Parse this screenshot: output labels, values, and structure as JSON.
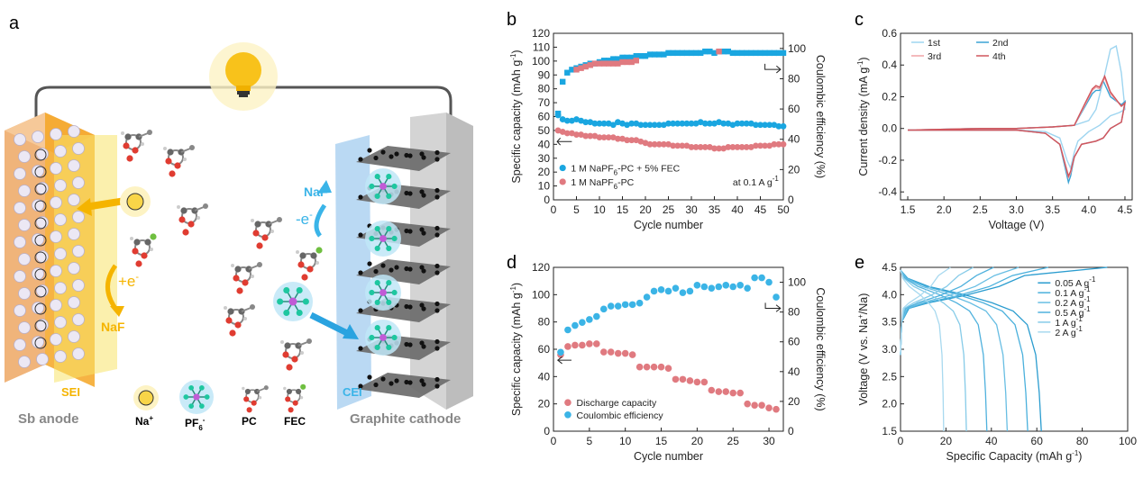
{
  "panels": {
    "a": {
      "letter": "a",
      "labels": {
        "sb_anode": "Sb anode",
        "graphite_cathode": "Graphite cathode",
        "sei": "SEI",
        "cei": "CEI",
        "naf_left": "NaF",
        "naf_right": "NaF",
        "plus_e": "+e",
        "minus_e": "-e",
        "electron_sup": "-",
        "legend_na": "Na",
        "legend_na_sup": "+",
        "legend_pf6": "PF",
        "legend_pf6_sub": "6",
        "legend_pf6_sup": "-",
        "legend_pc": "PC",
        "legend_fec": "FEC"
      },
      "colors": {
        "anode": "#f5a623",
        "sei": "#f7e36a",
        "cei": "#9cc9ee",
        "arrow_yellow": "#f5b400",
        "arrow_blue": "#3ab4e8"
      }
    },
    "b": {
      "letter": "b",
      "chart_data": {
        "type": "scatter",
        "xlabel": "Cycle number",
        "ylabel": "Specific capacity (mAh g",
        "ylabel_sup": "-1",
        "ylabel_end": ")",
        "y2label": "Coulombic efficiency (%)",
        "xlim": [
          0,
          50
        ],
        "ylim": [
          0,
          120
        ],
        "y2lim": [
          0,
          110
        ],
        "xticks": [
          0,
          5,
          10,
          15,
          20,
          25,
          30,
          35,
          40,
          45,
          50
        ],
        "yticks": [
          0,
          10,
          20,
          30,
          40,
          50,
          60,
          70,
          80,
          90,
          100,
          110,
          120
        ],
        "y2ticks": [
          0,
          20,
          40,
          60,
          80,
          100
        ],
        "annotation": "at 0.1 A g",
        "annotation_sup": "-1",
        "series": [
          {
            "name": "1 M NaPF6-PC + 5% FEC",
            "name_main": "1 M NaPF",
            "name_sub": "6",
            "name_end": "-PC + 5% FEC",
            "color": "#1aa6e0",
            "kind": "capacity",
            "x": [
              1,
              2,
              3,
              4,
              5,
              6,
              7,
              8,
              9,
              10,
              11,
              12,
              13,
              14,
              15,
              16,
              17,
              18,
              19,
              20,
              21,
              22,
              23,
              24,
              25,
              26,
              27,
              28,
              29,
              30,
              31,
              32,
              33,
              34,
              35,
              36,
              37,
              38,
              39,
              40,
              41,
              42,
              43,
              44,
              45,
              46,
              47,
              48,
              49,
              50
            ],
            "y": [
              61,
              58,
              57,
              57,
              58,
              57,
              56,
              56,
              55,
              55,
              55,
              55,
              54,
              56,
              55,
              54,
              55,
              55,
              54,
              54,
              54,
              54,
              54,
              54,
              55,
              55,
              55,
              55,
              55,
              55,
              55,
              56,
              55,
              55,
              55,
              56,
              55,
              55,
              54,
              55,
              55,
              55,
              55,
              54,
              54,
              54,
              54,
              54,
              53,
              53
            ]
          },
          {
            "name": "1 M NaPF6-PC + 5% FEC CE",
            "color": "#1aa6e0",
            "kind": "ce",
            "x": [
              1,
              2,
              3,
              4,
              5,
              6,
              7,
              8,
              9,
              10,
              11,
              12,
              13,
              14,
              15,
              16,
              17,
              18,
              19,
              20,
              21,
              22,
              23,
              24,
              25,
              26,
              27,
              28,
              29,
              30,
              31,
              32,
              33,
              34,
              35,
              36,
              37,
              38,
              39,
              40,
              41,
              42,
              43,
              44,
              45,
              46,
              47,
              48,
              49,
              50
            ],
            "y": [
              57,
              78,
              84,
              86,
              87,
              88,
              89,
              90,
              90,
              91,
              92,
              92,
              93,
              93,
              94,
              94,
              94,
              95,
              95,
              95,
              96,
              96,
              96,
              96,
              97,
              97,
              97,
              97,
              97,
              97,
              97,
              97,
              98,
              98,
              97,
              98,
              98,
              98,
              97,
              97,
              97,
              97,
              97,
              97,
              97,
              97,
              97,
              97,
              97,
              97
            ]
          },
          {
            "name": "1 M NaPF6-PC",
            "name_main": "1 M NaPF",
            "name_sub": "6",
            "name_end": "-PC",
            "color": "#e07a80",
            "kind": "capacity",
            "x": [
              1,
              2,
              3,
              4,
              5,
              6,
              7,
              8,
              9,
              10,
              11,
              12,
              13,
              14,
              15,
              16,
              17,
              18,
              19,
              20,
              21,
              22,
              23,
              24,
              25,
              26,
              27,
              28,
              29,
              30,
              31,
              32,
              33,
              34,
              35,
              36,
              37,
              38,
              39,
              40,
              41,
              42,
              43,
              44,
              45,
              46,
              47,
              48,
              49,
              50
            ],
            "y": [
              50,
              49,
              48,
              48,
              47,
              47,
              46,
              46,
              46,
              45,
              45,
              45,
              45,
              44,
              44,
              43,
              43,
              43,
              42,
              41,
              40,
              40,
              40,
              40,
              40,
              39,
              39,
              39,
              39,
              38,
              38,
              38,
              38,
              38,
              37,
              37,
              37,
              38,
              38,
              38,
              38,
              38,
              38,
              39,
              39,
              39,
              39,
              40,
              40,
              40
            ]
          },
          {
            "name": "1 M NaPF6-PC CE",
            "color": "#e07a80",
            "kind": "ce",
            "x": [
              5,
              6,
              7,
              8,
              9,
              10,
              11,
              12,
              13,
              14,
              15,
              16,
              17,
              18,
              36
            ],
            "y": [
              86,
              87,
              88,
              89,
              90,
              90,
              90,
              90,
              90,
              90,
              91,
              91,
              91,
              92,
              98
            ]
          }
        ]
      }
    },
    "c": {
      "letter": "c",
      "chart_data": {
        "type": "line",
        "xlabel": "Voltage (V)",
        "ylabel": "Current density (mA g",
        "ylabel_sup": "-1",
        "ylabel_end": ")",
        "xlim": [
          1.4,
          4.6
        ],
        "ylim": [
          -0.45,
          0.6
        ],
        "xticks": [
          1.5,
          2.0,
          2.5,
          3.0,
          3.5,
          4.0,
          4.5
        ],
        "xtick_labels": [
          "1.5",
          "2.0",
          "2.5",
          "3.0",
          "3.5",
          "4.0",
          "4.5"
        ],
        "yticks": [
          -0.4,
          -0.2,
          0.0,
          0.2,
          0.4,
          0.6
        ],
        "ytick_labels": [
          "-0.4",
          "-0.2",
          "0.0",
          "0.2",
          "0.4",
          "0.6"
        ],
        "series": [
          {
            "name": "1st",
            "color": "#9ed5f0",
            "x": [
              1.5,
              2.5,
              3.0,
              3.5,
              3.8,
              4.0,
              4.1,
              4.2,
              4.3,
              4.38,
              4.45,
              4.5,
              4.42,
              4.3,
              4.15,
              4.0,
              3.85,
              3.8,
              3.75,
              3.7,
              3.6,
              3.4,
              3.0,
              2.5,
              1.5
            ],
            "y": [
              -0.01,
              0.0,
              0.0,
              0.01,
              0.02,
              0.05,
              0.12,
              0.3,
              0.5,
              0.52,
              0.35,
              0.12,
              0.1,
              0.08,
              0.02,
              -0.02,
              -0.08,
              -0.15,
              -0.25,
              -0.2,
              -0.06,
              -0.02,
              -0.01,
              -0.01,
              -0.01
            ]
          },
          {
            "name": "2nd",
            "color": "#3aa3d4",
            "x": [
              1.5,
              2.5,
              3.0,
              3.5,
              3.8,
              3.95,
              4.05,
              4.1,
              4.15,
              4.2,
              4.3,
              4.45,
              4.5,
              4.45,
              4.3,
              4.2,
              4.1,
              3.9,
              3.8,
              3.75,
              3.72,
              3.6,
              3.4,
              3.0,
              2.5,
              1.5
            ],
            "y": [
              -0.01,
              0.0,
              0.0,
              0.01,
              0.02,
              0.14,
              0.22,
              0.24,
              0.24,
              0.3,
              0.2,
              0.15,
              0.17,
              0.04,
              0.0,
              -0.06,
              -0.08,
              -0.1,
              -0.18,
              -0.3,
              -0.34,
              -0.1,
              -0.03,
              -0.01,
              -0.01,
              -0.01
            ]
          },
          {
            "name": "3rd",
            "color": "#f0a2a6",
            "x": [
              1.5,
              2.5,
              3.0,
              3.5,
              3.8,
              3.95,
              4.05,
              4.1,
              4.15,
              4.22,
              4.3,
              4.45,
              4.5,
              4.45,
              4.3,
              4.2,
              4.1,
              3.9,
              3.8,
              3.75,
              3.72,
              3.6,
              3.4,
              3.0,
              2.5,
              1.5
            ],
            "y": [
              -0.01,
              0.0,
              0.0,
              0.01,
              0.02,
              0.15,
              0.24,
              0.26,
              0.25,
              0.32,
              0.22,
              0.14,
              0.16,
              0.04,
              0.0,
              -0.06,
              -0.08,
              -0.1,
              -0.18,
              -0.28,
              -0.31,
              -0.1,
              -0.03,
              -0.01,
              -0.01,
              -0.01
            ]
          },
          {
            "name": "4th",
            "color": "#d0555c",
            "x": [
              1.5,
              2.5,
              3.0,
              3.5,
              3.8,
              3.95,
              4.05,
              4.1,
              4.15,
              4.22,
              4.3,
              4.45,
              4.5,
              4.45,
              4.3,
              4.2,
              4.1,
              3.9,
              3.8,
              3.75,
              3.72,
              3.6,
              3.4,
              3.0,
              2.5,
              1.5
            ],
            "y": [
              -0.01,
              0.0,
              0.0,
              0.01,
              0.02,
              0.16,
              0.25,
              0.27,
              0.26,
              0.33,
              0.23,
              0.14,
              0.16,
              0.04,
              0.0,
              -0.06,
              -0.08,
              -0.1,
              -0.18,
              -0.27,
              -0.3,
              -0.1,
              -0.03,
              -0.01,
              -0.01,
              -0.01
            ]
          }
        ]
      }
    },
    "d": {
      "letter": "d",
      "chart_data": {
        "type": "scatter",
        "xlabel": "Cycle number",
        "ylabel": "Specific capacity (mAh g",
        "ylabel_sup": "-1",
        "ylabel_end": ")",
        "y2label": "Coulombic efficiency (%)",
        "xlim": [
          0,
          32
        ],
        "ylim": [
          0,
          120
        ],
        "y2lim": [
          0,
          110
        ],
        "xticks": [
          0,
          5,
          10,
          15,
          20,
          25,
          30
        ],
        "yticks": [
          0,
          20,
          40,
          60,
          80,
          100,
          120
        ],
        "y2ticks": [
          0,
          20,
          40,
          60,
          80,
          100
        ],
        "series": [
          {
            "name": "Discharge capacity",
            "color": "#e07a80",
            "kind": "capacity",
            "x": [
              1,
              2,
              3,
              4,
              5,
              6,
              7,
              8,
              9,
              10,
              11,
              12,
              13,
              14,
              15,
              16,
              17,
              18,
              19,
              20,
              21,
              22,
              23,
              24,
              25,
              26,
              27,
              28,
              29,
              30,
              31
            ],
            "y": [
              56,
              62,
              63,
              63,
              64,
              64,
              58,
              58,
              57,
              57,
              56,
              47,
              47,
              47,
              47,
              46,
              38,
              38,
              37,
              36,
              36,
              30,
              29,
              29,
              28,
              28,
              20,
              19,
              19,
              17,
              16
            ]
          },
          {
            "name": "Coulombic efficiency",
            "color": "#3bb4e6",
            "kind": "ce",
            "x": [
              1,
              2,
              3,
              4,
              5,
              6,
              7,
              8,
              9,
              10,
              11,
              12,
              13,
              14,
              15,
              16,
              17,
              18,
              19,
              20,
              21,
              22,
              23,
              24,
              25,
              26,
              27,
              28,
              29,
              30,
              31
            ],
            "y": [
              53,
              68,
              71,
              73,
              75,
              77,
              82,
              84,
              84,
              85,
              85,
              86,
              90,
              94,
              95,
              94,
              96,
              93,
              94,
              98,
              97,
              96,
              97,
              98,
              97,
              98,
              96,
              103,
              103,
              100,
              90
            ]
          }
        ]
      }
    },
    "e": {
      "letter": "e",
      "chart_data": {
        "type": "line",
        "xlabel": "Specific Capacity (mAh g",
        "xlabel_sup": "-1",
        "xlabel_end": ")",
        "ylabel": "Voltage (V vs. Na",
        "ylabel_sup": "+",
        "ylabel_end": "/Na)",
        "xlim": [
          0,
          100
        ],
        "ylim": [
          1.5,
          4.5
        ],
        "xticks": [
          0,
          20,
          40,
          60,
          80,
          100
        ],
        "yticks": [
          1.5,
          2.0,
          2.5,
          3.0,
          3.5,
          4.0,
          4.5
        ],
        "ytick_labels": [
          "1.5",
          "2.0",
          "2.5",
          "3.0",
          "3.5",
          "4.0",
          "4.5"
        ],
        "series": [
          {
            "name": "0.05 A g",
            "sup": "-1",
            "color": "#2a9ccf",
            "cap": 62,
            "chg_end": 91
          },
          {
            "name": "0.1 A g",
            "sup": "-1",
            "color": "#4ab0dc",
            "cap": 56,
            "chg_end": 65
          },
          {
            "name": "0.2 A g",
            "sup": "-1",
            "color": "#68bee3",
            "cap": 47,
            "chg_end": 52
          },
          {
            "name": "0.5 A g",
            "sup": "-1",
            "color": "#4fb1dd",
            "cap": 38,
            "chg_end": 41
          },
          {
            "name": "1 A g",
            "sup": "-1",
            "color": "#86cbe8",
            "cap": 29,
            "chg_end": 32
          },
          {
            "name": "2 A g",
            "sup": "-1",
            "color": "#a8d9ef",
            "cap": 19,
            "chg_end": 22
          }
        ]
      }
    }
  }
}
